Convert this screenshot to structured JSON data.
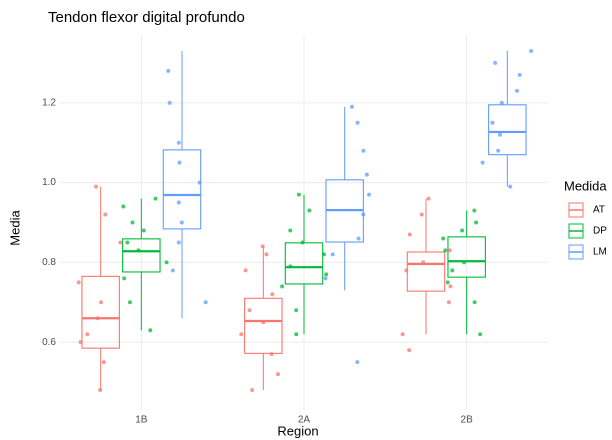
{
  "chart_data": {
    "type": "boxplot",
    "title": "Tendon flexor digital profundo",
    "x_label": "Region",
    "y_label": "Media",
    "legend_title": "Medida",
    "categories": [
      "1B",
      "2A",
      "2B"
    ],
    "ylim": [
      0.43,
      1.37
    ],
    "yticks": [
      0.6,
      0.8,
      {
        "value": 1.0,
        "label": "1.0"
      },
      1.2
    ],
    "grid": true,
    "legend": "right",
    "series": [
      {
        "name": "AT",
        "color": "#F8766D",
        "boxes": [
          {
            "whislo": 0.48,
            "q1": 0.585,
            "med": 0.66,
            "q3": 0.765,
            "whishi": 0.99
          },
          {
            "whislo": 0.48,
            "q1": 0.572,
            "med": 0.653,
            "q3": 0.71,
            "whishi": 0.84
          },
          {
            "whislo": 0.62,
            "q1": 0.728,
            "med": 0.796,
            "q3": 0.826,
            "whishi": 0.96
          }
        ],
        "points": [
          [
            0.48,
            0.55,
            0.6,
            0.62,
            0.66,
            0.7,
            0.75,
            0.85,
            0.92,
            0.99
          ],
          [
            0.48,
            0.52,
            0.57,
            0.62,
            0.65,
            0.68,
            0.72,
            0.78,
            0.82,
            0.84
          ],
          [
            0.58,
            0.62,
            0.7,
            0.74,
            0.78,
            0.8,
            0.83,
            0.87,
            0.92,
            0.96
          ]
        ]
      },
      {
        "name": "DP",
        "color": "#00BA38",
        "boxes": [
          {
            "whislo": 0.63,
            "q1": 0.776,
            "med": 0.828,
            "q3": 0.859,
            "whishi": 0.96
          },
          {
            "whislo": 0.62,
            "q1": 0.746,
            "med": 0.788,
            "q3": 0.849,
            "whishi": 0.97
          },
          {
            "whislo": 0.62,
            "q1": 0.763,
            "med": 0.803,
            "q3": 0.864,
            "whishi": 0.93
          }
        ],
        "points": [
          [
            0.63,
            0.7,
            0.76,
            0.8,
            0.83,
            0.85,
            0.88,
            0.9,
            0.94,
            0.96
          ],
          [
            0.62,
            0.68,
            0.74,
            0.77,
            0.79,
            0.82,
            0.85,
            0.88,
            0.93,
            0.97
          ],
          [
            0.62,
            0.7,
            0.75,
            0.78,
            0.8,
            0.83,
            0.86,
            0.88,
            0.9,
            0.93
          ]
        ]
      },
      {
        "name": "LM",
        "color": "#619CFF",
        "boxes": [
          {
            "whislo": 0.66,
            "q1": 0.884,
            "med": 0.969,
            "q3": 1.082,
            "whishi": 1.33
          },
          {
            "whislo": 0.73,
            "q1": 0.851,
            "med": 0.931,
            "q3": 1.007,
            "whishi": 1.19
          },
          {
            "whislo": 0.99,
            "q1": 1.07,
            "med": 1.127,
            "q3": 1.195,
            "whishi": 1.33
          }
        ],
        "points": [
          [
            0.7,
            0.78,
            0.85,
            0.9,
            0.95,
            1.0,
            1.05,
            1.1,
            1.2,
            1.28
          ],
          [
            0.55,
            0.76,
            0.82,
            0.86,
            0.92,
            0.97,
            1.02,
            1.08,
            1.15,
            1.19
          ],
          [
            0.99,
            1.05,
            1.08,
            1.12,
            1.15,
            1.2,
            1.23,
            1.27,
            1.3,
            1.33
          ]
        ]
      }
    ]
  }
}
